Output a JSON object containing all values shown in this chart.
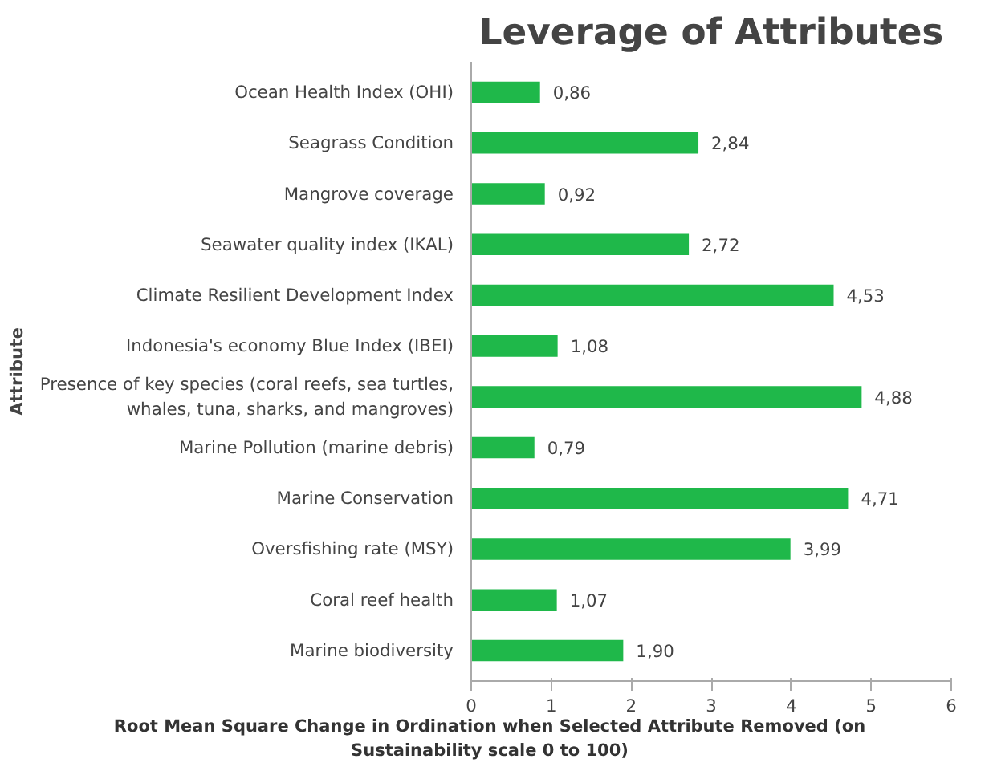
{
  "chart_data": {
    "type": "bar",
    "orientation": "horizontal",
    "title": "Leverage of Attributes",
    "xlabel": "Root Mean Square Change in Ordination when Selected Attribute Removed (on\nSustainability scale 0 to 100)",
    "ylabel": "Attribute",
    "categories": [
      "Ocean Health Index (OHI)",
      "Seagrass Condition",
      "Mangrove coverage",
      "Seawater quality index (IKAL)",
      "Climate Resilient Development Index",
      "Indonesia's economy Blue Index (IBEI)",
      "Presence of key species (coral reefs, sea turtles,\nwhales, tuna, sharks, and mangroves)",
      "Marine Pollution (marine debris)",
      "Marine Conservation",
      "Oversfishing rate (MSY)",
      "Coral reef health",
      "Marine biodiversity"
    ],
    "values": [
      0.86,
      2.84,
      0.92,
      2.72,
      4.53,
      1.08,
      4.88,
      0.79,
      4.71,
      3.99,
      1.07,
      1.9
    ],
    "value_labels": [
      "0,86",
      "2,84",
      "0,92",
      "2,72",
      "4,53",
      "1,08",
      "4,88",
      "0,79",
      "4,71",
      "3,99",
      "1,07",
      "1,90"
    ],
    "color": "#1fb84a",
    "xlim": [
      0,
      6
    ],
    "xticks": [
      0,
      1,
      2,
      3,
      4,
      5,
      6
    ],
    "grid": false
  }
}
